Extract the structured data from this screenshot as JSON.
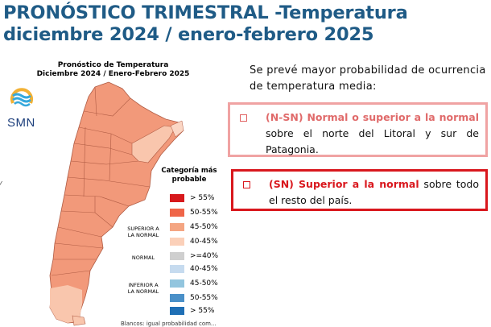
{
  "slide": {
    "title_line1": "PRONÓSTICO TRIMESTRAL -Temperatura",
    "title_line2": "diciembre 2024 / enero-febrero 2025"
  },
  "map": {
    "title_line1": "Pronóstico de Temperatura",
    "title_line2": "Diciembre 2024 / Enero-Febrero 2025",
    "logo_text": "SMN",
    "legend_title_line1": "Categoría más",
    "legend_title_line2": "probable",
    "groups": {
      "above_line1": "SUPERIOR A",
      "above_line2": "LA NORMAL",
      "normal": "NORMAL",
      "below_line1": "INFERIOR A",
      "below_line2": "LA NORMAL"
    },
    "legend": [
      {
        "label": "> 55%",
        "color": "#d7191c"
      },
      {
        "label": "50-55%",
        "color": "#ef6548"
      },
      {
        "label": "45-50%",
        "color": "#f4a582"
      },
      {
        "label": "40-45%",
        "color": "#fbd0b9"
      },
      {
        "label": ">=40%",
        "color": "#cfcfcf"
      },
      {
        "label": "40-45%",
        "color": "#c6dbef"
      },
      {
        "label": "45-50%",
        "color": "#92c5de"
      },
      {
        "label": "50-55%",
        "color": "#4a90c8"
      },
      {
        "label": "> 55%",
        "color": "#1f6fb5"
      }
    ],
    "footnote": "Blancos: igual probabilidad com..."
  },
  "forecast": {
    "intro": "Se prevé mayor probabilidad de ocurrencia de temperatura media:",
    "item1": {
      "highlight": "(N-SN) Normal o superior a la normal",
      "rest": " sobre el norte del Litoral y sur de Patagonia."
    },
    "item2": {
      "highlight": "(SN) Superior a la normal",
      "rest": " sobre todo el resto del país."
    }
  },
  "colors": {
    "title": "#1f5b86",
    "map_main": "#f2997a",
    "map_light": "#f9c6ad",
    "box1_border": "#f0a3a3",
    "box2_border": "#d9171d"
  }
}
